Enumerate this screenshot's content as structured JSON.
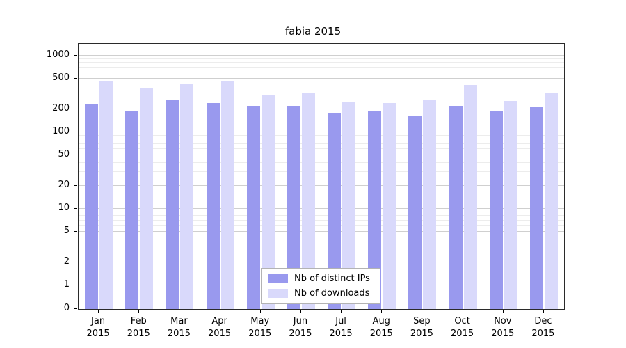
{
  "title": "fabia 2015",
  "axes": {
    "yticks": [
      0,
      1,
      2,
      5,
      10,
      20,
      50,
      100,
      200,
      500,
      1000
    ],
    "x_year_label": "2015"
  },
  "legend": {
    "items": [
      {
        "label": "Nb of distinct IPs",
        "color": "#9999ee"
      },
      {
        "label": "Nb of downloads",
        "color": "#d9d9fb"
      }
    ]
  },
  "chart_data": {
    "type": "bar",
    "title": "fabia 2015",
    "yscale": "log-with-zero",
    "categories": [
      "Jan",
      "Feb",
      "Mar",
      "Apr",
      "May",
      "Jun",
      "Jul",
      "Aug",
      "Sep",
      "Oct",
      "Nov",
      "Dec"
    ],
    "year": "2015",
    "series": [
      {
        "name": "Nb of distinct IPs",
        "color": "#9999ee",
        "values": [
          230,
          190,
          260,
          240,
          215,
          215,
          180,
          185,
          165,
          215,
          185,
          210
        ]
      },
      {
        "name": "Nb of downloads",
        "color": "#d9d9fb",
        "values": [
          460,
          370,
          420,
          460,
          310,
          330,
          250,
          240,
          260,
          410,
          255,
          330
        ]
      }
    ],
    "yticks": [
      0,
      1,
      2,
      5,
      10,
      20,
      50,
      100,
      200,
      500,
      1000
    ],
    "ylim": [
      0,
      1400
    ],
    "grid": true,
    "legend_position": "lower-center-inside"
  }
}
